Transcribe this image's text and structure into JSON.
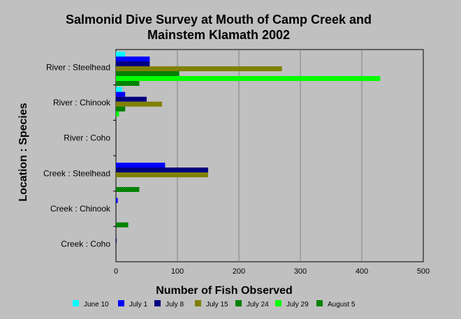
{
  "chart_data": {
    "type": "bar",
    "orientation": "horizontal",
    "title_line1": "Salmonid Dive Survey at Mouth of Camp Creek and",
    "title_line2": "Mainstem Klamath 2002",
    "xlabel": "Number of Fish Observed",
    "ylabel": "Location : Species",
    "xlim": [
      0,
      500
    ],
    "xticks": [
      "0",
      "100",
      "200",
      "300",
      "400",
      "500"
    ],
    "grid": true,
    "legend_position": "bottom",
    "categories": [
      "River : Steelhead",
      "River : Chinook",
      "River : Coho",
      "Creek : Steelhead",
      "Creek : Chinook",
      "Creek : Coho"
    ],
    "series": [
      {
        "name": "June 10",
        "color": "#00ffff",
        "pattern": "solid",
        "values": [
          15,
          10,
          0,
          0,
          0,
          0
        ]
      },
      {
        "name": "July 1",
        "color": "#0000ff",
        "pattern": "solid",
        "values": [
          55,
          15,
          0,
          80,
          3,
          0
        ]
      },
      {
        "name": "July 8",
        "color": "#00007f",
        "pattern": "solid",
        "values": [
          55,
          50,
          0,
          150,
          0,
          1
        ]
      },
      {
        "name": "July 15",
        "color": "#808000",
        "pattern": "solid",
        "values": [
          270,
          75,
          0,
          150,
          0,
          0
        ]
      },
      {
        "name": "July 24",
        "color": "#008000",
        "pattern": "solid",
        "values": [
          103,
          15,
          0,
          0,
          0,
          0
        ]
      },
      {
        "name": "July 29",
        "color": "#00ff00",
        "pattern": "solid",
        "values": [
          430,
          5,
          0,
          0,
          0,
          0
        ]
      },
      {
        "name": "August 5",
        "color": "#00a000",
        "pattern": "hatch",
        "values": [
          38,
          0,
          0,
          38,
          20,
          0
        ]
      }
    ]
  }
}
